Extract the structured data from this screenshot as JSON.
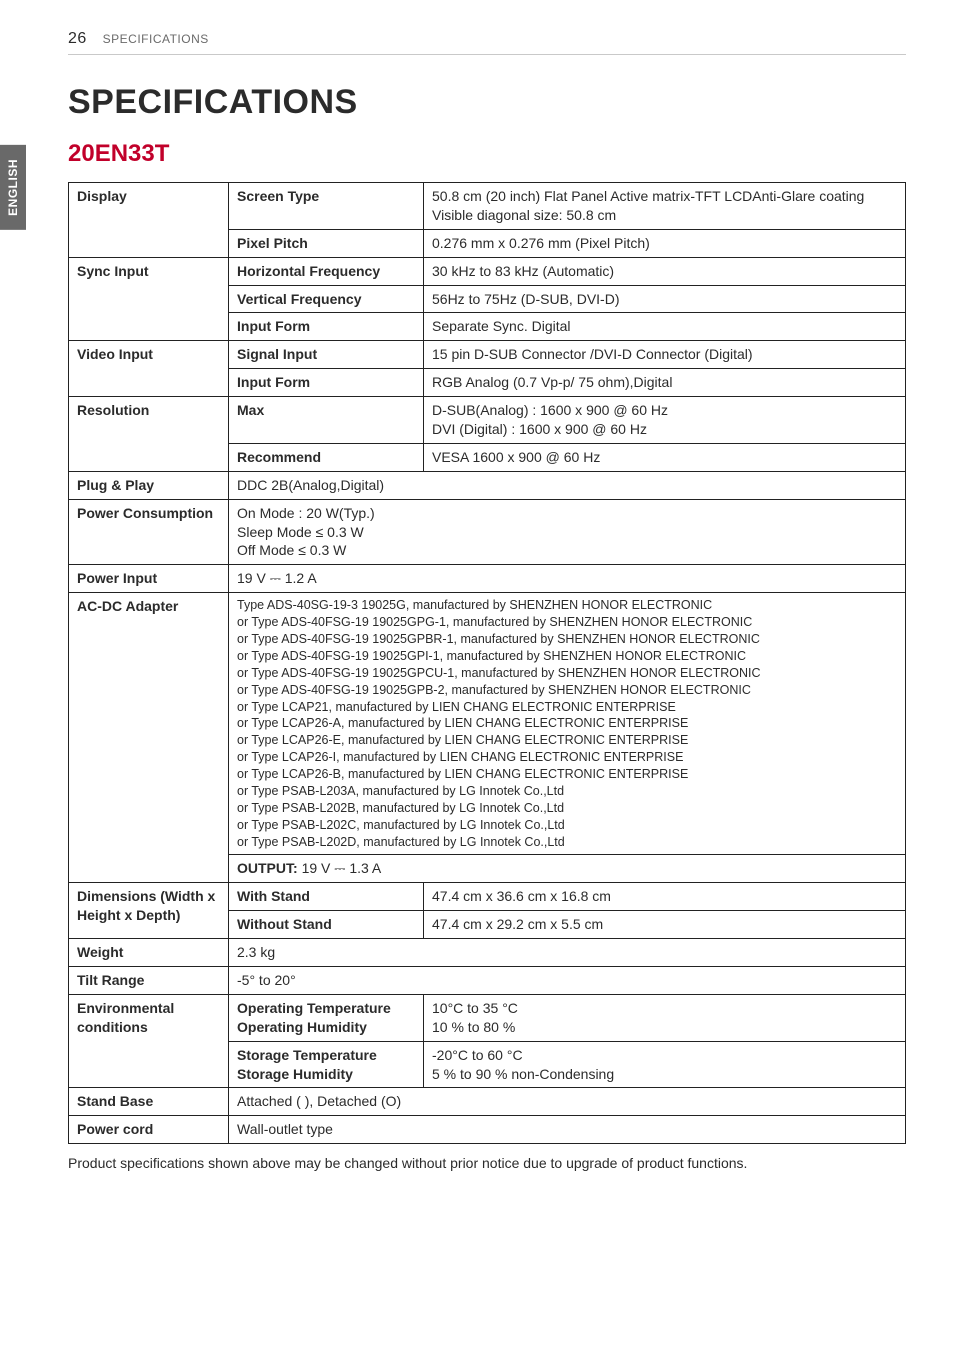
{
  "page": {
    "number": "26",
    "running": "SPECIFICATIONS",
    "side_tab": "ENGLISH",
    "title": "SPECIFICATIONS",
    "model": "20EN33T",
    "footnote": "Product specifications shown above may be changed without prior notice due to upgrade of product functions."
  },
  "rows": {
    "display": {
      "label": "Display",
      "sub1": "Screen Type",
      "val1": "50.8 cm (20 inch) Flat Panel Active matrix-TFT LCDAnti-Glare coating\nVisible diagonal size: 50.8 cm",
      "sub2": "Pixel Pitch",
      "val2": "0.276 mm x 0.276 mm (Pixel Pitch)"
    },
    "sync": {
      "label": "Sync Input",
      "hf": "Horizontal Frequency",
      "hfv": "30 kHz to 83 kHz (Automatic)",
      "vf": "Vertical Frequency",
      "vfv": "56Hz to 75Hz (D-SUB, DVI-D)",
      "if": "Input Form",
      "ifv": "Separate Sync. Digital"
    },
    "video": {
      "label": "Video Input",
      "si": "Signal Input",
      "siv": "15 pin D-SUB Connector /DVI-D Connector (Digital)",
      "if": "Input Form",
      "ifv": "RGB Analog (0.7 Vp-p/ 75 ohm),Digital"
    },
    "res": {
      "label": "Resolution",
      "max": "Max",
      "maxv": "D-SUB(Analog) : 1600 x 900 @ 60 Hz\nDVI (Digital) : 1600 x 900 @ 60 Hz",
      "rec": "Recommend",
      "recv": "VESA 1600 x 900 @ 60 Hz"
    },
    "plug": {
      "label": "Plug & Play",
      "val": "DDC 2B(Analog,Digital)"
    },
    "power": {
      "label": "Power Consumption",
      "val": "On Mode : 20 W(Typ.)\nSleep Mode ≤ 0.3 W\nOff Mode ≤ 0.3 W"
    },
    "pinput": {
      "label": "Power Input",
      "val": "19 V ⎓ 1.2 A"
    },
    "adapter": {
      "label": "AC-DC Adapter",
      "list": "Type ADS-40SG-19-3 19025G, manufactured by SHENZHEN HONOR ELECTRONIC\nor Type ADS-40FSG-19 19025GPG-1, manufactured by SHENZHEN HONOR ELECTRONIC\nor Type ADS-40FSG-19 19025GPBR-1, manufactured by SHENZHEN HONOR ELECTRONIC\nor Type ADS-40FSG-19 19025GPI-1, manufactured by SHENZHEN HONOR ELECTRONIC\nor Type ADS-40FSG-19 19025GPCU-1, manufactured by SHENZHEN HONOR ELECTRONIC\nor Type ADS-40FSG-19 19025GPB-2, manufactured by SHENZHEN HONOR ELECTRONIC\nor Type LCAP21, manufactured by LIEN CHANG ELECTRONIC ENTERPRISE\nor Type LCAP26-A, manufactured by LIEN CHANG ELECTRONIC ENTERPRISE\nor Type LCAP26-E, manufactured by LIEN CHANG ELECTRONIC ENTERPRISE\nor Type LCAP26-I, manufactured by LIEN CHANG ELECTRONIC ENTERPRISE\nor Type LCAP26-B, manufactured by LIEN CHANG ELECTRONIC ENTERPRISE\nor Type PSAB-L203A, manufactured by LG Innotek Co.,Ltd\nor Type PSAB-L202B, manufactured by LG Innotek Co.,Ltd\nor Type PSAB-L202C, manufactured by LG Innotek Co.,Ltd\nor Type PSAB-L202D, manufactured by LG Innotek Co.,Ltd",
      "output_label": "OUTPUT: ",
      "output_val": "19 V ⎓ 1.3 A"
    },
    "dim": {
      "label": "Dimensions (Width x Height x Depth)",
      "ws": "With Stand",
      "wsv": "47.4 cm x 36.6 cm x 16.8 cm",
      "wos": "Without Stand",
      "wosv": "47.4 cm x 29.2 cm x 5.5 cm"
    },
    "weight": {
      "label": "Weight",
      "val": "2.3 kg"
    },
    "tilt": {
      "label": "Tilt Range",
      "val": "-5° to 20°"
    },
    "env": {
      "label": "Environmental conditions",
      "op": "Operating Temperature\nOperating Humidity",
      "opv": "10°C to 35 °C\n10 % to 80 %",
      "st": "Storage Temperature\nStorage Humidity",
      "stv": "-20°C to 60 °C\n  5 % to 90 % non-Condensing"
    },
    "stand": {
      "label": "Stand Base",
      "val": "Attached (    ), Detached (O)"
    },
    "cord": {
      "label": "Power cord",
      "val": "Wall-outlet type"
    }
  }
}
